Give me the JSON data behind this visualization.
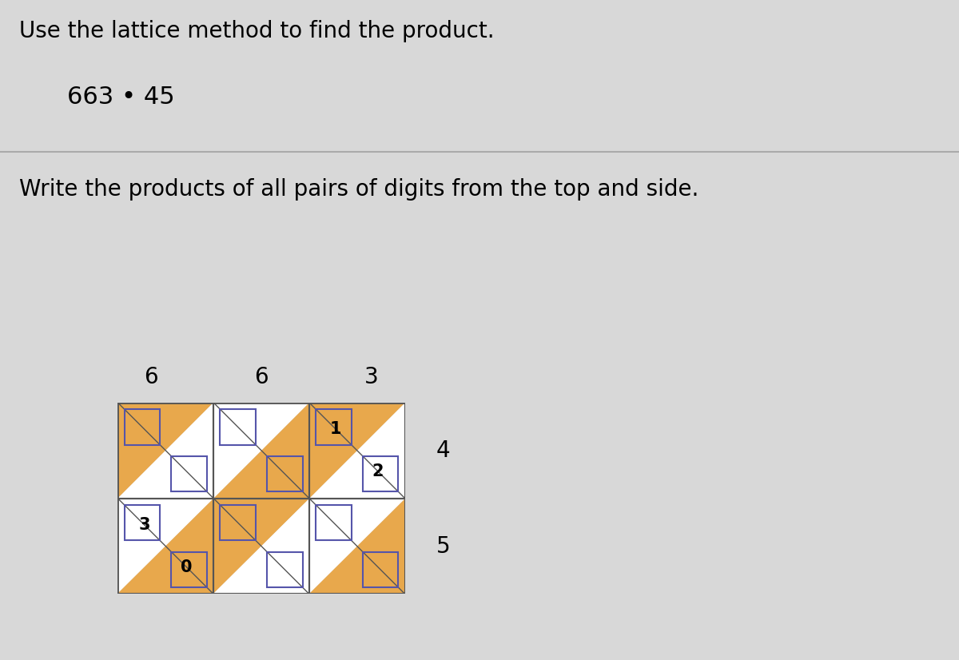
{
  "title_line1": "Use the lattice method to find the product.",
  "title_line2": "663 • 45",
  "instruction": "Write the products of all pairs of digits from the top and side.",
  "top_digits": [
    "6",
    "6",
    "3"
  ],
  "side_digits": [
    "4",
    "5"
  ],
  "ncols": 3,
  "nrows": 2,
  "bg_color": "#d8d8d8",
  "orange_color": "#E8A84C",
  "white_color": "#FFFFFF",
  "box_color": "#5555AA",
  "grid_line_color": "#555555",
  "sep_line_color": "#aaaaaa",
  "upper_values": [
    [
      "",
      "",
      "1"
    ],
    [
      "3",
      "",
      ""
    ]
  ],
  "lower_values": [
    [
      "",
      "",
      "2"
    ],
    [
      "0",
      "",
      ""
    ]
  ]
}
